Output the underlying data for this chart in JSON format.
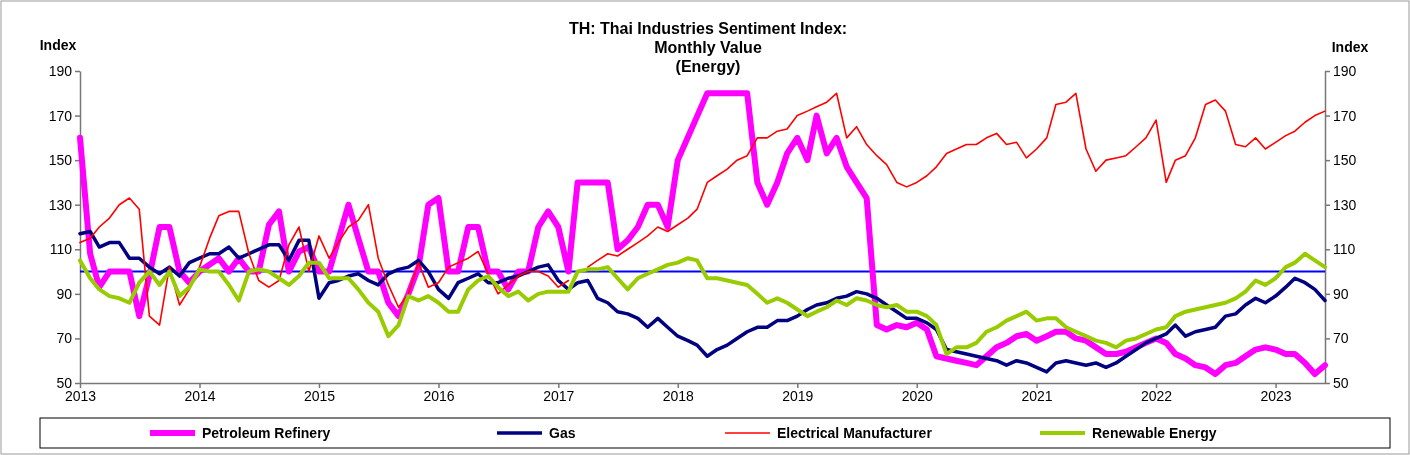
{
  "chart_data": {
    "type": "line",
    "title": "TH: Thai Industries Sentiment Index:\nMonthly Value\n(Energy)",
    "ylabel": "Index",
    "y2label": "Index",
    "xlim": [
      "2013-01",
      "2023-06"
    ],
    "xticks": [
      "2013",
      "2014",
      "2015",
      "2016",
      "2017",
      "2018",
      "2019",
      "2020",
      "2021",
      "2022",
      "2023"
    ],
    "ylim": [
      50,
      190
    ],
    "yticks": [
      50,
      70,
      90,
      110,
      130,
      150,
      170,
      190
    ],
    "y2lim": [
      50,
      190
    ],
    "y2ticks": [
      50,
      70,
      90,
      110,
      130,
      150,
      170,
      190
    ],
    "grid": false,
    "legend": "bottom",
    "marker": "none",
    "line_style": "solid",
    "ref_lines": [
      {
        "axis": "y",
        "value": 100,
        "color": "#0000ff"
      }
    ],
    "series": [
      {
        "name": "Petroleum Refinery",
        "color": "#ff00ff",
        "x": [
          "2013-01",
          "2013-02",
          "2013-03",
          "2013-04",
          "2013-06",
          "2013-07",
          "2013-08",
          "2013-09",
          "2013-10",
          "2013-11",
          "2013-12",
          "2014-01",
          "2014-03",
          "2014-04",
          "2014-05",
          "2014-06",
          "2014-07",
          "2014-08",
          "2014-09",
          "2014-10",
          "2014-11",
          "2014-12",
          "2015-01",
          "2015-02",
          "2015-04",
          "2015-05",
          "2015-06",
          "2015-07",
          "2015-08",
          "2015-09",
          "2015-10",
          "2015-11",
          "2015-12",
          "2016-01",
          "2016-02",
          "2016-03",
          "2016-04",
          "2016-05",
          "2016-06",
          "2016-07",
          "2016-08",
          "2016-09",
          "2016-10",
          "2016-11",
          "2016-12",
          "2017-01",
          "2017-02",
          "2017-03",
          "2017-06",
          "2017-07",
          "2017-08",
          "2017-09",
          "2017-10",
          "2017-11",
          "2017-12",
          "2018-01",
          "2018-04",
          "2018-08",
          "2018-09",
          "2018-10",
          "2018-11",
          "2018-12",
          "2019-01",
          "2019-02",
          "2019-03",
          "2019-04",
          "2019-05",
          "2019-06",
          "2019-07",
          "2019-08",
          "2019-09",
          "2019-10",
          "2019-11",
          "2019-12",
          "2020-01",
          "2020-02",
          "2020-03",
          "2020-05",
          "2020-06",
          "2020-07",
          "2020-08",
          "2020-09",
          "2020-10",
          "2020-11",
          "2020-12",
          "2021-01",
          "2021-02",
          "2021-03",
          "2021-04",
          "2021-05",
          "2021-06",
          "2021-07",
          "2021-08",
          "2021-09",
          "2021-10",
          "2021-11",
          "2021-12",
          "2022-01",
          "2022-02",
          "2022-03",
          "2022-04",
          "2022-05",
          "2022-06",
          "2022-07",
          "2022-08",
          "2022-09",
          "2022-10",
          "2022-11",
          "2022-12",
          "2023-01",
          "2023-02",
          "2023-03",
          "2023-04",
          "2023-05",
          "2023-06"
        ],
        "values": [
          160,
          108,
          93,
          100,
          100,
          80,
          98,
          120,
          120,
          100,
          95,
          100,
          106,
          100,
          106,
          100,
          100,
          121,
          127,
          100,
          109,
          111,
          100,
          100,
          130,
          115,
          100,
          100,
          86,
          80,
          90,
          102,
          130,
          133,
          100,
          100,
          120,
          120,
          100,
          100,
          92,
          100,
          100,
          120,
          127,
          120,
          100,
          140,
          140,
          110,
          114,
          120,
          130,
          130,
          120,
          150,
          180,
          180,
          140,
          130,
          140,
          153,
          160,
          150,
          170,
          153,
          160,
          147,
          140,
          133,
          76,
          74,
          76,
          75,
          77,
          74,
          62,
          60,
          59,
          58,
          62,
          66,
          68,
          71,
          72,
          69,
          71,
          73,
          73,
          70,
          69,
          66,
          63,
          63,
          64,
          66,
          68,
          70,
          68,
          63,
          61,
          58,
          57,
          54,
          58,
          59,
          62,
          65,
          66,
          65,
          63,
          63,
          59,
          54,
          58
        ]
      },
      {
        "name": "Gas",
        "color": "#000080",
        "x": [
          "2013-01",
          "2013-02",
          "2013-03",
          "2013-04",
          "2013-05",
          "2013-06",
          "2013-07",
          "2013-08",
          "2013-09",
          "2013-10",
          "2013-11",
          "2013-12",
          "2014-01",
          "2014-02",
          "2014-03",
          "2014-04",
          "2014-05",
          "2014-06",
          "2014-07",
          "2014-08",
          "2014-09",
          "2014-10",
          "2014-11",
          "2014-12",
          "2015-01",
          "2015-02",
          "2015-03",
          "2015-04",
          "2015-05",
          "2015-06",
          "2015-07",
          "2015-08",
          "2015-09",
          "2015-10",
          "2015-11",
          "2015-12",
          "2016-01",
          "2016-02",
          "2016-03",
          "2016-04",
          "2016-05",
          "2016-06",
          "2016-07",
          "2016-08",
          "2016-09",
          "2016-10",
          "2016-11",
          "2016-12",
          "2017-01",
          "2017-02",
          "2017-03",
          "2017-04",
          "2017-05",
          "2017-06",
          "2017-07",
          "2017-08",
          "2017-09",
          "2017-10",
          "2017-11",
          "2017-12",
          "2018-01",
          "2018-02",
          "2018-03",
          "2018-04",
          "2018-05",
          "2018-06",
          "2018-07",
          "2018-08",
          "2018-09",
          "2018-10",
          "2018-11",
          "2018-12",
          "2019-01",
          "2019-02",
          "2019-03",
          "2019-04",
          "2019-05",
          "2019-06",
          "2019-07",
          "2019-08",
          "2019-09",
          "2019-10",
          "2019-11",
          "2019-12",
          "2020-01",
          "2020-02",
          "2020-03",
          "2020-04",
          "2020-05",
          "2020-06",
          "2020-07",
          "2020-08",
          "2020-09",
          "2020-10",
          "2020-11",
          "2020-12",
          "2021-01",
          "2021-02",
          "2021-03",
          "2021-04",
          "2021-05",
          "2021-06",
          "2021-07",
          "2021-08",
          "2021-09",
          "2021-10",
          "2021-11",
          "2021-12",
          "2022-01",
          "2022-02",
          "2022-03",
          "2022-04",
          "2022-05",
          "2022-06",
          "2022-07",
          "2022-08",
          "2022-09",
          "2022-10",
          "2022-11",
          "2022-12",
          "2023-01",
          "2023-02",
          "2023-03",
          "2023-04",
          "2023-05",
          "2023-06"
        ],
        "values": [
          117,
          118,
          111,
          113,
          113,
          106,
          106,
          102,
          99,
          102,
          98,
          104,
          106,
          108,
          108,
          111,
          106,
          108,
          110,
          112,
          112,
          105,
          114,
          114,
          88,
          95,
          96,
          98,
          99,
          96,
          94,
          99,
          101,
          102,
          105,
          100,
          92,
          88,
          95,
          97,
          99,
          95,
          95,
          97,
          98,
          100,
          102,
          103,
          96,
          92,
          95,
          96,
          88,
          86,
          82,
          81,
          79,
          75,
          79,
          75,
          71,
          69,
          67,
          62,
          65,
          67,
          70,
          73,
          75,
          75,
          78,
          78,
          80,
          83,
          85,
          86,
          88,
          89,
          91,
          90,
          88,
          85,
          82,
          79,
          79,
          77,
          74,
          65,
          64,
          63,
          62,
          61,
          60,
          58,
          60,
          59,
          57,
          55,
          59,
          60,
          59,
          58,
          59,
          57,
          59,
          62,
          65,
          68,
          70,
          72,
          76,
          71,
          73,
          74,
          75,
          80,
          81,
          85,
          88,
          86,
          89,
          93,
          97,
          95,
          92,
          87
        ]
      },
      {
        "name": "Electrical Manufacturer",
        "color": "#ff0000",
        "x": [
          "2013-01",
          "2013-02",
          "2013-03",
          "2013-04",
          "2013-05",
          "2013-06",
          "2013-07",
          "2013-08",
          "2013-09",
          "2013-10",
          "2013-11",
          "2013-12",
          "2014-01",
          "2014-02",
          "2014-03",
          "2014-04",
          "2014-05",
          "2014-06",
          "2014-07",
          "2014-08",
          "2014-09",
          "2014-10",
          "2014-11",
          "2014-12",
          "2015-01",
          "2015-02",
          "2015-03",
          "2015-04",
          "2015-05",
          "2015-06",
          "2015-07",
          "2015-08",
          "2015-09",
          "2015-10",
          "2015-11",
          "2015-12",
          "2016-01",
          "2016-02",
          "2016-03",
          "2016-04",
          "2016-05",
          "2016-06",
          "2016-07",
          "2016-08",
          "2016-09",
          "2016-10",
          "2016-11",
          "2016-12",
          "2017-01",
          "2017-02",
          "2017-03",
          "2017-04",
          "2017-05",
          "2017-06",
          "2017-07",
          "2017-08",
          "2017-09",
          "2017-10",
          "2017-11",
          "2017-12",
          "2018-01",
          "2018-02",
          "2018-03",
          "2018-04",
          "2018-05",
          "2018-06",
          "2018-07",
          "2018-08",
          "2018-09",
          "2018-10",
          "2018-11",
          "2018-12",
          "2019-01",
          "2019-02",
          "2019-03",
          "2019-04",
          "2019-05",
          "2019-06",
          "2019-07",
          "2019-08",
          "2019-09",
          "2019-10",
          "2019-11",
          "2019-12",
          "2020-01",
          "2020-02",
          "2020-03",
          "2020-04",
          "2020-05",
          "2020-06",
          "2020-07",
          "2020-08",
          "2020-09",
          "2020-10",
          "2020-11",
          "2020-12",
          "2021-01",
          "2021-02",
          "2021-03",
          "2021-04",
          "2021-05",
          "2021-06",
          "2021-07",
          "2021-08",
          "2021-09",
          "2021-10",
          "2021-11",
          "2021-12",
          "2022-01",
          "2022-02",
          "2022-03",
          "2022-04",
          "2022-05",
          "2022-06",
          "2022-07",
          "2022-08",
          "2022-09",
          "2022-10",
          "2022-11",
          "2022-12",
          "2023-01",
          "2023-02",
          "2023-03",
          "2023-04",
          "2023-05",
          "2023-06"
        ],
        "values": [
          113,
          115,
          120,
          124,
          130,
          133,
          128,
          80,
          76,
          102,
          85,
          92,
          102,
          115,
          125,
          127,
          127,
          108,
          96,
          93,
          96,
          112,
          120,
          100,
          116,
          106,
          113,
          120,
          123,
          130,
          106,
          94,
          84,
          90,
          104,
          93,
          95,
          102,
          104,
          106,
          109,
          99,
          90,
          94,
          98,
          100,
          100,
          98,
          93,
          96,
          null,
          102,
          105,
          108,
          107,
          110,
          113,
          116,
          120,
          118,
          121,
          124,
          128,
          140,
          143,
          146,
          150,
          152,
          160,
          160,
          163,
          164,
          170,
          172,
          174,
          176,
          180,
          160,
          165,
          157,
          152,
          148,
          140,
          138,
          140,
          143,
          147,
          153,
          155,
          157,
          157,
          160,
          162,
          157,
          158,
          151,
          155,
          160,
          175,
          176,
          180,
          155,
          145,
          150,
          151,
          152,
          156,
          160,
          168,
          140,
          150,
          152,
          160,
          175,
          177,
          172,
          157,
          156,
          160,
          155,
          158,
          161,
          163,
          167,
          170,
          172
        ]
      },
      {
        "name": "Renewable Energy",
        "color": "#99cc00",
        "x": [
          "2013-01",
          "2013-02",
          "2013-03",
          "2013-04",
          "2013-05",
          "2013-06",
          "2013-07",
          "2013-08",
          "2013-09",
          "2013-10",
          "2013-11",
          "2013-12",
          "2014-01",
          "2014-02",
          "2014-03",
          "2014-04",
          "2014-05",
          "2014-06",
          "2014-07",
          "2014-08",
          "2014-09",
          "2014-10",
          "2014-11",
          "2014-12",
          "2015-01",
          "2015-02",
          "2015-03",
          "2015-04",
          "2015-05",
          "2015-06",
          "2015-07",
          "2015-08",
          "2015-09",
          "2015-10",
          "2015-11",
          "2015-12",
          "2016-01",
          "2016-02",
          "2016-03",
          "2016-04",
          "2016-05",
          "2016-06",
          "2016-07",
          "2016-08",
          "2016-09",
          "2016-10",
          "2016-11",
          "2016-12",
          "2017-01",
          "2017-02",
          "2017-03",
          "2017-04",
          "2017-05",
          "2017-06",
          "2017-07",
          "2017-08",
          "2017-09",
          "2017-10",
          "2017-11",
          "2017-12",
          "2018-01",
          "2018-02",
          "2018-03",
          "2018-04",
          "2018-05",
          "2018-06",
          "2018-07",
          "2018-08",
          "2018-09",
          "2018-10",
          "2018-11",
          "2018-12",
          "2019-01",
          "2019-02",
          "2019-03",
          "2019-04",
          "2019-05",
          "2019-06",
          "2019-07",
          "2019-08",
          "2019-09",
          "2019-10",
          "2019-11",
          "2019-12",
          "2020-01",
          "2020-02",
          "2020-03",
          "2020-04",
          "2020-05",
          "2020-06",
          "2020-07",
          "2020-08",
          "2020-09",
          "2020-10",
          "2020-11",
          "2020-12",
          "2021-01",
          "2021-02",
          "2021-03",
          "2021-04",
          "2021-05",
          "2021-06",
          "2021-07",
          "2021-08",
          "2021-09",
          "2021-10",
          "2021-11",
          "2021-12",
          "2022-01",
          "2022-02",
          "2022-03",
          "2022-04",
          "2022-05",
          "2022-06",
          "2022-07",
          "2022-08",
          "2022-09",
          "2022-10",
          "2022-11",
          "2022-12",
          "2023-01",
          "2023-02",
          "2023-03",
          "2023-04",
          "2023-05",
          "2023-06"
        ],
        "values": [
          105,
          97,
          92,
          89,
          88,
          86,
          95,
          100,
          94,
          100,
          89,
          93,
          101,
          100,
          100,
          94,
          87,
          100,
          101,
          100,
          97,
          94,
          98,
          104,
          104,
          97,
          97,
          97,
          92,
          86,
          82,
          71,
          76,
          89,
          87,
          89,
          86,
          82,
          82,
          92,
          96,
          98,
          93,
          89,
          91,
          87,
          90,
          91,
          91,
          91,
          100,
          101,
          101,
          102,
          97,
          92,
          97,
          99,
          101,
          103,
          104,
          106,
          105,
          97,
          97,
          96,
          95,
          94,
          90,
          86,
          88,
          86,
          83,
          80,
          82,
          84,
          87,
          85,
          88,
          87,
          85,
          84,
          85,
          82,
          82,
          80,
          76,
          63,
          66,
          66,
          68,
          73,
          75,
          78,
          80,
          82,
          78,
          79,
          79,
          75,
          73,
          71,
          69,
          68,
          66,
          69,
          70,
          72,
          74,
          75,
          80,
          82,
          83,
          84,
          85,
          86,
          88,
          91,
          96,
          94,
          97,
          102,
          104,
          108,
          105,
          102
        ]
      }
    ]
  }
}
